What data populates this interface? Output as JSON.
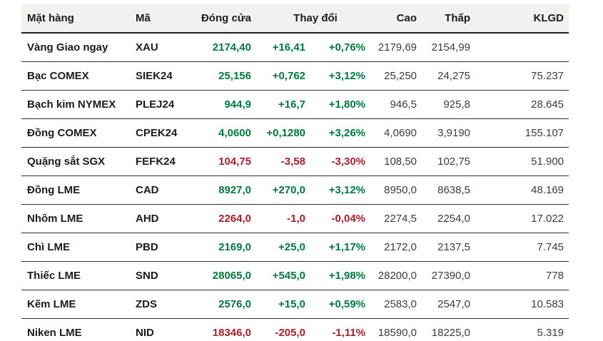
{
  "colors": {
    "positive": "#00793f",
    "negative": "#a8202c",
    "header_bg": "#f1f1ef",
    "header_text": "#1c1c1c",
    "plain_text": "#3c3c3c"
  },
  "chart_data": {
    "type": "table",
    "title": "",
    "headers": {
      "item": "Mặt hàng",
      "code": "Mã",
      "close": "Đóng cửa",
      "change": "Thay đổi",
      "high": "Cao",
      "low": "Thấp",
      "volume": "KLGD"
    },
    "rows": [
      {
        "item": "Vàng Giao ngay",
        "code": "XAU",
        "close": "2174,40",
        "change": "+16,41",
        "change_pct": "+0,76%",
        "high": "2179,69",
        "low": "2154,99",
        "volume": "",
        "direction": "up"
      },
      {
        "item": "Bạc COMEX",
        "code": "SIEK24",
        "close": "25,156",
        "change": "+0,762",
        "change_pct": "+3,12%",
        "high": "25,250",
        "low": "24,275",
        "volume": "75.237",
        "direction": "up"
      },
      {
        "item": "Bạch kim NYMEX",
        "code": "PLEJ24",
        "close": "944,9",
        "change": "+16,7",
        "change_pct": "+1,80%",
        "high": "946,5",
        "low": "925,8",
        "volume": "28.645",
        "direction": "up"
      },
      {
        "item": "Đồng COMEX",
        "code": "CPEK24",
        "close": "4,0600",
        "change": "+0,1280",
        "change_pct": "+3,26%",
        "high": "4,0690",
        "low": "3,9190",
        "volume": "155.107",
        "direction": "up"
      },
      {
        "item": "Quặng sắt SGX",
        "code": "FEFK24",
        "close": "104,75",
        "change": "-3,58",
        "change_pct": "-3,30%",
        "high": "108,50",
        "low": "102,75",
        "volume": "51.900",
        "direction": "down"
      },
      {
        "item": "Đồng LME",
        "code": "CAD",
        "close": "8927,0",
        "change": "+270,0",
        "change_pct": "+3,12%",
        "high": "8950,0",
        "low": "8638,5",
        "volume": "48.169",
        "direction": "up"
      },
      {
        "item": "Nhôm LME",
        "code": "AHD",
        "close": "2264,0",
        "change": "-1,0",
        "change_pct": "-0,04%",
        "high": "2274,5",
        "low": "2254,0",
        "volume": "17.022",
        "direction": "down"
      },
      {
        "item": "Chì LME",
        "code": "PBD",
        "close": "2169,0",
        "change": "+25,0",
        "change_pct": "+1,17%",
        "high": "2172,0",
        "low": "2137,5",
        "volume": "7.745",
        "direction": "up"
      },
      {
        "item": "Thiếc LME",
        "code": "SND",
        "close": "28065,0",
        "change": "+545,0",
        "change_pct": "+1,98%",
        "high": "28200,0",
        "low": "27390,0",
        "volume": "778",
        "direction": "up"
      },
      {
        "item": "Kẽm LME",
        "code": "ZDS",
        "close": "2576,0",
        "change": "+15,0",
        "change_pct": "+0,59%",
        "high": "2583,0",
        "low": "2547,0",
        "volume": "10.583",
        "direction": "up"
      },
      {
        "item": "Niken LME",
        "code": "NID",
        "close": "18346,0",
        "change": "-205,0",
        "change_pct": "-1,11%",
        "high": "18590,0",
        "low": "18225,0",
        "volume": "5.319",
        "direction": "down"
      }
    ]
  }
}
